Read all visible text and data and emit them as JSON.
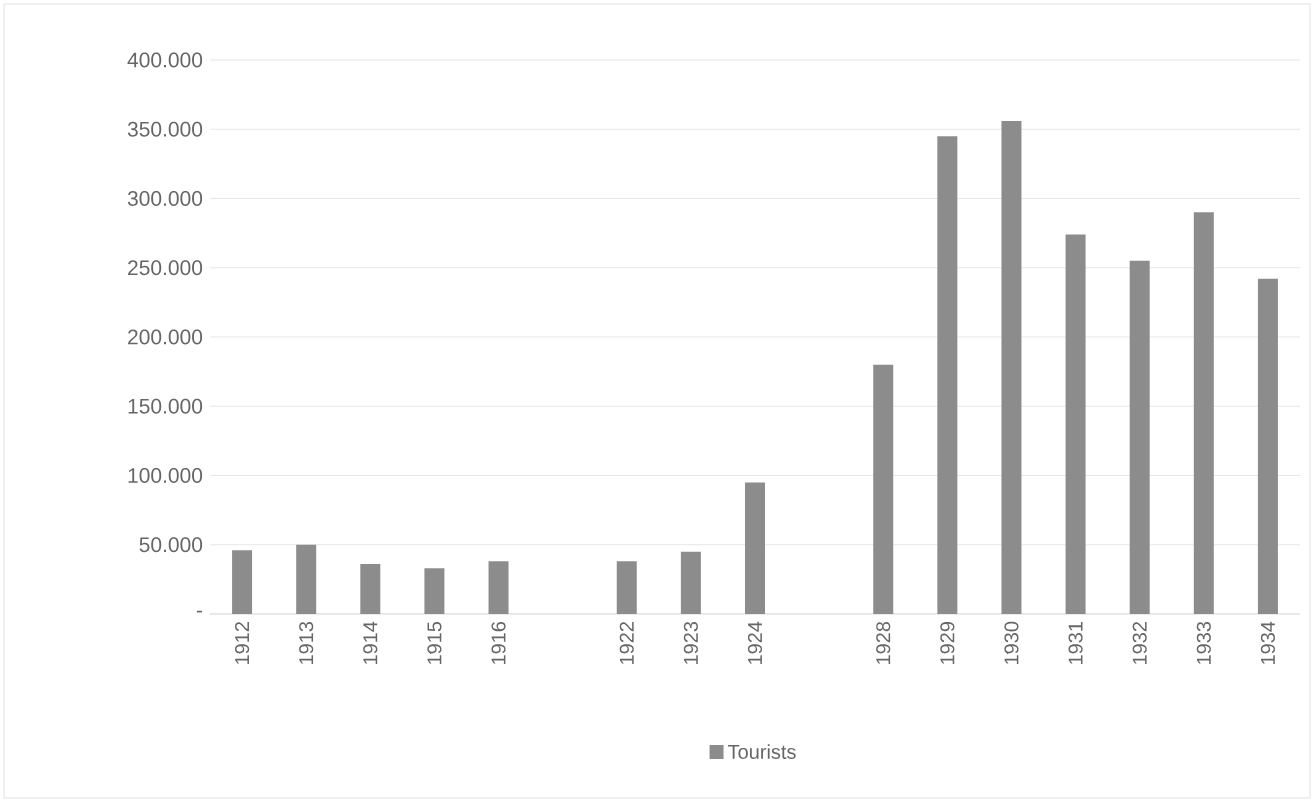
{
  "chart_data": {
    "type": "bar",
    "categories": [
      "1912",
      "1913",
      "1914",
      "1915",
      "1916",
      null,
      "1922",
      "1923",
      "1924",
      null,
      "1928",
      "1929",
      "1930",
      "1931",
      "1932",
      "1933",
      "1934"
    ],
    "series": [
      {
        "name": "Tourists",
        "color": "#8c8c8c",
        "values": [
          46000,
          50000,
          36000,
          33000,
          38000,
          null,
          38000,
          45000,
          95000,
          null,
          180000,
          345000,
          356000,
          274000,
          255000,
          290000,
          242000
        ]
      }
    ],
    "ylim": [
      0,
      400000
    ],
    "yticks": [
      {
        "value": 0,
        "label": "-"
      },
      {
        "value": 50000,
        "label": "50.000"
      },
      {
        "value": 100000,
        "label": "100.000"
      },
      {
        "value": 150000,
        "label": "150.000"
      },
      {
        "value": 200000,
        "label": "200.000"
      },
      {
        "value": 250000,
        "label": "250.000"
      },
      {
        "value": 300000,
        "label": "300.000"
      },
      {
        "value": 350000,
        "label": "350.000"
      },
      {
        "value": 400000,
        "label": "400.000"
      }
    ],
    "grid": "y",
    "legend": "bottom"
  }
}
